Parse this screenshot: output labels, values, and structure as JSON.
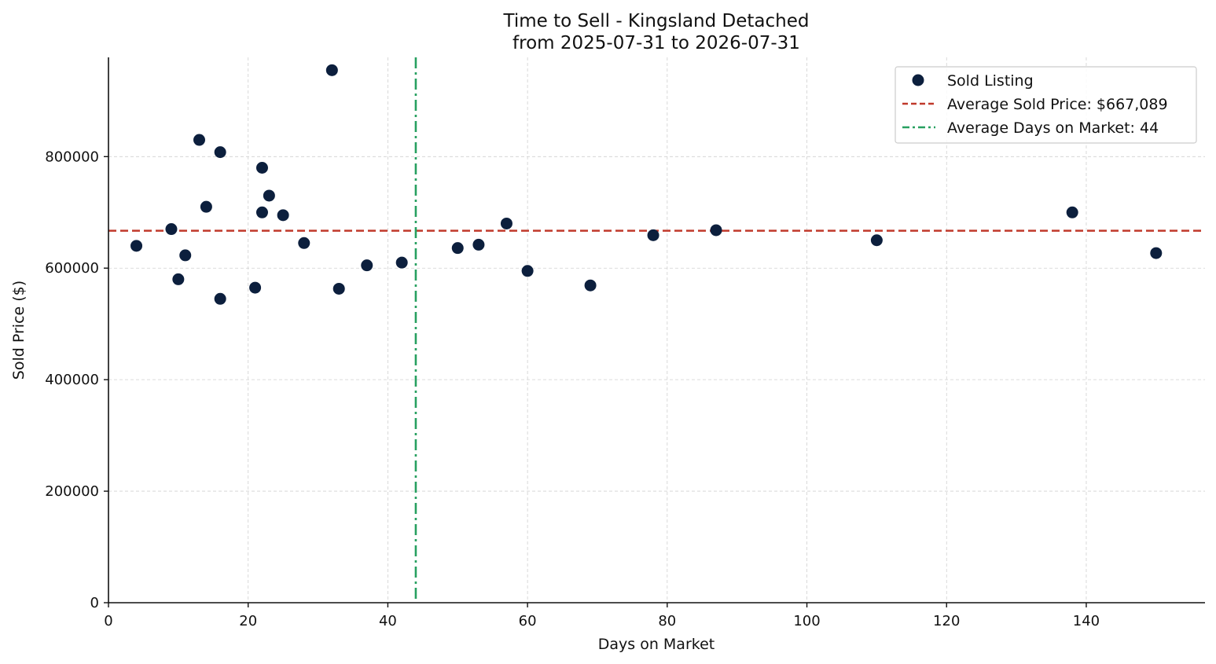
{
  "chart_data": {
    "type": "scatter",
    "title": "Time to Sell - Kingsland Detached",
    "subtitle": "from 2025-07-31 to 2026-07-31",
    "xlabel": "Days on Market",
    "ylabel": "Sold Price ($)",
    "xlim": [
      0,
      157
    ],
    "ylim": [
      0,
      978000
    ],
    "xticks": [
      0,
      20,
      40,
      60,
      80,
      100,
      120,
      140
    ],
    "yticks": [
      0,
      200000,
      400000,
      600000,
      800000
    ],
    "grid": true,
    "legend_position": "top-right",
    "series": [
      {
        "name": "Sold Listing",
        "color": "#0c1f3d",
        "points": [
          {
            "x": 4,
            "y": 640000
          },
          {
            "x": 9,
            "y": 670000
          },
          {
            "x": 10,
            "y": 580000
          },
          {
            "x": 11,
            "y": 623000
          },
          {
            "x": 13,
            "y": 830000
          },
          {
            "x": 14,
            "y": 710000
          },
          {
            "x": 16,
            "y": 808000
          },
          {
            "x": 16,
            "y": 545000
          },
          {
            "x": 21,
            "y": 565000
          },
          {
            "x": 22,
            "y": 780000
          },
          {
            "x": 22,
            "y": 700000
          },
          {
            "x": 23,
            "y": 730000
          },
          {
            "x": 25,
            "y": 695000
          },
          {
            "x": 28,
            "y": 645000
          },
          {
            "x": 32,
            "y": 955000
          },
          {
            "x": 33,
            "y": 563000
          },
          {
            "x": 37,
            "y": 605000
          },
          {
            "x": 42,
            "y": 610000
          },
          {
            "x": 50,
            "y": 636000
          },
          {
            "x": 53,
            "y": 642000
          },
          {
            "x": 57,
            "y": 680000
          },
          {
            "x": 60,
            "y": 595000
          },
          {
            "x": 69,
            "y": 569000
          },
          {
            "x": 78,
            "y": 659000
          },
          {
            "x": 87,
            "y": 668000
          },
          {
            "x": 110,
            "y": 650000
          },
          {
            "x": 138,
            "y": 700000
          },
          {
            "x": 150,
            "y": 627000
          }
        ]
      }
    ],
    "reference_lines": [
      {
        "orientation": "horizontal",
        "value": 667089,
        "label": "Average Sold Price: $667,089",
        "color": "#c0392b",
        "style": "dashed"
      },
      {
        "orientation": "vertical",
        "value": 44,
        "label": "Average Days on Market: 44",
        "color": "#27a060",
        "style": "dashdot"
      }
    ]
  }
}
